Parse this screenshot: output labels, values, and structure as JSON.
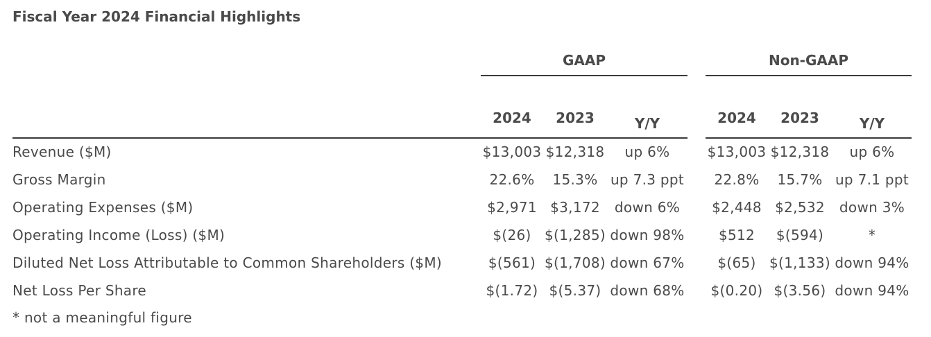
{
  "title": "Fiscal Year 2024 Financial Highlights",
  "groups": [
    {
      "label": "GAAP",
      "columns": [
        "2024",
        "2023",
        "Y/Y"
      ]
    },
    {
      "label": "Non-GAAP",
      "columns": [
        "2024",
        "2023",
        "Y/Y"
      ]
    }
  ],
  "rows": [
    {
      "label": "Revenue ($M)",
      "values": [
        "$13,003",
        "$12,318",
        "up 6%",
        "$13,003",
        "$12,318",
        "up 6%"
      ]
    },
    {
      "label": "Gross Margin",
      "values": [
        "22.6%",
        "15.3%",
        "up 7.3 ppt",
        "22.8%",
        "15.7%",
        "up 7.1 ppt"
      ]
    },
    {
      "label": "Operating Expenses ($M)",
      "values": [
        "$2,971",
        "$3,172",
        "down 6%",
        "$2,448",
        "$2,532",
        "down 3%"
      ]
    },
    {
      "label": "Operating Income (Loss) ($M)",
      "values": [
        "$(26)",
        "$(1,285)",
        "down 98%",
        "$512",
        "$(594)",
        "*"
      ]
    },
    {
      "label": "Diluted Net Loss Attributable to Common Shareholders ($M)",
      "values": [
        "$(561)",
        "$(1,708)",
        "down 67%",
        "$(65)",
        "$(1,133)",
        "down 94%"
      ]
    },
    {
      "label": "Net Loss Per Share",
      "values": [
        "$(1.72)",
        "$(5.37)",
        "down 68%",
        "$(0.20)",
        "$(3.56)",
        "down 94%"
      ]
    }
  ],
  "footnote": "* not a meaningful figure"
}
